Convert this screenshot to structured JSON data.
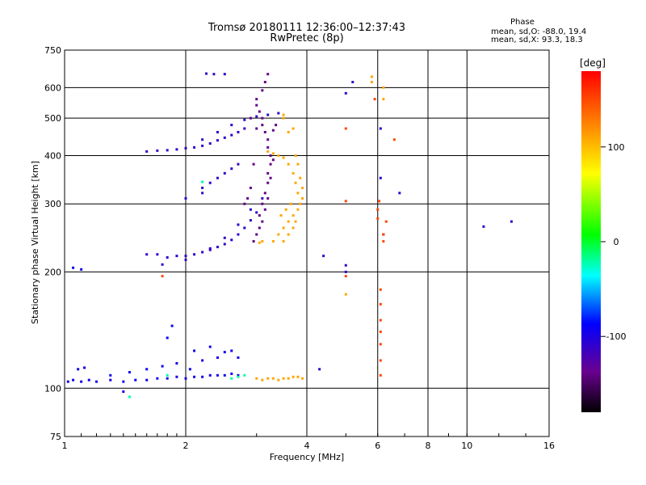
{
  "header": {
    "title_line1": "Tromsø 20180111 12:36:00–12:37:43",
    "title_line2": "RwPretec (8p)",
    "stats_title": "Phase",
    "stats_o": "mean, sd,O: -88.0, 19.4",
    "stats_x": "mean, sd,X:  93.3, 18.3"
  },
  "chart_data": {
    "type": "scatter",
    "title": "Tromsø 20180111 12:36:00–12:37:43",
    "subtitle": "RwPretec (8p)",
    "xlabel": "Frequency [MHz]",
    "ylabel": "Stationary phase Virtual Height [km]",
    "xscale": "log",
    "yscale": "log",
    "xlim": [
      1,
      16
    ],
    "ylim": [
      75,
      750
    ],
    "xticks": [
      1,
      2,
      4,
      6,
      8,
      10,
      16
    ],
    "yticks": [
      75,
      100,
      200,
      300,
      400,
      500,
      600,
      750
    ],
    "grid": true,
    "colorbar": {
      "label": "[deg]",
      "range": [
        -180,
        180
      ],
      "ticks": [
        100,
        0,
        -100
      ]
    },
    "series": [
      {
        "phase": -95,
        "points": [
          [
            1.02,
            104
          ],
          [
            1.05,
            105
          ],
          [
            1.1,
            104
          ],
          [
            1.15,
            105
          ],
          [
            1.2,
            104
          ],
          [
            1.3,
            105
          ],
          [
            1.4,
            104
          ],
          [
            1.5,
            105
          ],
          [
            1.6,
            105
          ],
          [
            1.7,
            106
          ],
          [
            1.8,
            106
          ],
          [
            1.9,
            107
          ],
          [
            2.0,
            106
          ],
          [
            2.1,
            107
          ],
          [
            2.2,
            107
          ],
          [
            2.3,
            108
          ],
          [
            2.4,
            108
          ],
          [
            2.5,
            108
          ],
          [
            2.6,
            109
          ],
          [
            2.7,
            108
          ],
          [
            1.08,
            112
          ],
          [
            1.12,
            113
          ],
          [
            1.3,
            108
          ],
          [
            1.45,
            110
          ],
          [
            1.6,
            112
          ],
          [
            1.75,
            114
          ],
          [
            1.9,
            116
          ],
          [
            2.05,
            112
          ],
          [
            2.2,
            118
          ],
          [
            2.4,
            120
          ],
          [
            2.6,
            125
          ],
          [
            1.85,
            145
          ],
          [
            1.8,
            135
          ],
          [
            2.1,
            125
          ],
          [
            2.3,
            128
          ],
          [
            2.5,
            124
          ],
          [
            2.7,
            120
          ],
          [
            1.4,
            98
          ],
          [
            1.05,
            205
          ],
          [
            1.1,
            203
          ]
        ]
      },
      {
        "phase": -110,
        "points": [
          [
            1.6,
            222
          ],
          [
            1.7,
            222
          ],
          [
            1.8,
            218
          ],
          [
            1.9,
            220
          ],
          [
            2.0,
            220
          ],
          [
            2.1,
            222
          ],
          [
            2.2,
            225
          ],
          [
            2.3,
            228
          ],
          [
            2.4,
            232
          ],
          [
            2.5,
            236
          ],
          [
            2.6,
            242
          ],
          [
            2.7,
            250
          ],
          [
            2.8,
            260
          ],
          [
            2.9,
            272
          ],
          [
            3.0,
            285
          ],
          [
            1.75,
            209
          ],
          [
            2.0,
            215
          ],
          [
            2.3,
            230
          ],
          [
            2.5,
            245
          ],
          [
            2.7,
            265
          ],
          [
            2.9,
            290
          ],
          [
            3.1,
            310
          ],
          [
            1.6,
            410
          ],
          [
            1.7,
            412
          ],
          [
            1.8,
            413
          ],
          [
            1.9,
            415
          ],
          [
            2.0,
            418
          ],
          [
            2.1,
            420
          ],
          [
            2.2,
            424
          ],
          [
            2.3,
            430
          ],
          [
            2.4,
            438
          ],
          [
            2.5,
            445
          ],
          [
            2.6,
            452
          ],
          [
            2.7,
            460
          ],
          [
            2.8,
            470
          ],
          [
            2.2,
            440
          ],
          [
            2.4,
            460
          ],
          [
            2.6,
            480
          ],
          [
            2.8,
            495
          ],
          [
            3.0,
            505
          ],
          [
            3.2,
            510
          ],
          [
            3.4,
            515
          ],
          [
            2.2,
            330
          ],
          [
            2.3,
            340
          ],
          [
            2.4,
            350
          ],
          [
            2.5,
            360
          ],
          [
            2.6,
            370
          ],
          [
            2.7,
            380
          ],
          [
            2.0,
            310
          ],
          [
            2.2,
            320
          ],
          [
            2.35,
            650
          ],
          [
            2.5,
            650
          ],
          [
            2.25,
            652
          ],
          [
            4.4,
            220
          ],
          [
            5.0,
            200
          ],
          [
            5.0,
            208
          ],
          [
            5.0,
            580
          ],
          [
            5.2,
            620
          ],
          [
            6.1,
            470
          ],
          [
            6.1,
            350
          ],
          [
            6.8,
            320
          ],
          [
            11.0,
            262
          ],
          [
            12.9,
            270
          ],
          [
            4.3,
            112
          ],
          [
            6.2,
            250
          ]
        ]
      },
      {
        "phase": -140,
        "points": [
          [
            3.1,
            300
          ],
          [
            3.15,
            320
          ],
          [
            3.2,
            340
          ],
          [
            3.2,
            360
          ],
          [
            3.25,
            380
          ],
          [
            3.25,
            400
          ],
          [
            3.2,
            420
          ],
          [
            3.2,
            440
          ],
          [
            3.15,
            460
          ],
          [
            3.1,
            480
          ],
          [
            3.1,
            500
          ],
          [
            3.05,
            520
          ],
          [
            3.0,
            540
          ],
          [
            3.0,
            560
          ],
          [
            3.1,
            590
          ],
          [
            3.15,
            620
          ],
          [
            3.2,
            650
          ],
          [
            3.1,
            270
          ],
          [
            3.05,
            260
          ],
          [
            3.0,
            250
          ],
          [
            2.95,
            240
          ],
          [
            3.05,
            280
          ],
          [
            3.2,
            310
          ],
          [
            3.15,
            290
          ],
          [
            3.25,
            350
          ],
          [
            3.3,
            390
          ],
          [
            2.95,
            380
          ],
          [
            2.9,
            330
          ],
          [
            2.85,
            310
          ],
          [
            2.8,
            300
          ],
          [
            3.0,
            470
          ],
          [
            2.9,
            500
          ],
          [
            3.3,
            465
          ],
          [
            3.35,
            480
          ]
        ]
      },
      {
        "phase": -20,
        "points": [
          [
            2.6,
            106
          ],
          [
            2.7,
            107
          ],
          [
            2.8,
            108
          ],
          [
            1.8,
            108
          ],
          [
            2.2,
            342
          ],
          [
            1.45,
            95
          ]
        ]
      },
      {
        "phase": 110,
        "points": [
          [
            3.0,
            106
          ],
          [
            3.1,
            105
          ],
          [
            3.2,
            106
          ],
          [
            3.3,
            106
          ],
          [
            3.4,
            105
          ],
          [
            3.5,
            106
          ],
          [
            3.6,
            106
          ],
          [
            3.7,
            107
          ],
          [
            3.8,
            107
          ],
          [
            3.9,
            106
          ],
          [
            3.3,
            240
          ],
          [
            3.4,
            250
          ],
          [
            3.5,
            260
          ],
          [
            3.6,
            270
          ],
          [
            3.7,
            280
          ],
          [
            3.8,
            290
          ],
          [
            3.85,
            300
          ],
          [
            3.8,
            320
          ],
          [
            3.75,
            340
          ],
          [
            3.7,
            360
          ],
          [
            3.6,
            380
          ],
          [
            3.5,
            395
          ],
          [
            3.4,
            400
          ],
          [
            3.3,
            405
          ],
          [
            3.2,
            410
          ],
          [
            3.5,
            240
          ],
          [
            3.6,
            250
          ],
          [
            3.7,
            260
          ],
          [
            3.75,
            270
          ],
          [
            3.9,
            310
          ],
          [
            3.9,
            330
          ],
          [
            3.85,
            350
          ],
          [
            3.8,
            380
          ],
          [
            3.75,
            400
          ],
          [
            3.65,
            300
          ],
          [
            3.55,
            290
          ],
          [
            3.45,
            280
          ],
          [
            3.1,
            240
          ],
          [
            3.05,
            238
          ],
          [
            3.6,
            460
          ],
          [
            3.7,
            470
          ],
          [
            3.5,
            500
          ],
          [
            3.5,
            510
          ],
          [
            6.2,
            560
          ],
          [
            6.2,
            600
          ],
          [
            5.8,
            620
          ],
          [
            5.8,
            640
          ],
          [
            5.0,
            175
          ]
        ]
      },
      {
        "phase": 150,
        "points": [
          [
            5.0,
            470
          ],
          [
            5.0,
            305
          ],
          [
            5.9,
            560
          ],
          [
            6.0,
            290
          ],
          [
            6.0,
            275
          ],
          [
            6.2,
            250
          ],
          [
            6.2,
            240
          ],
          [
            6.1,
            180
          ],
          [
            6.1,
            165
          ],
          [
            6.1,
            150
          ],
          [
            6.1,
            140
          ],
          [
            6.1,
            130
          ],
          [
            6.1,
            118
          ],
          [
            6.1,
            108
          ],
          [
            6.6,
            440
          ],
          [
            5.0,
            195
          ],
          [
            6.3,
            270
          ],
          [
            1.75,
            195
          ],
          [
            6.05,
            305
          ]
        ]
      }
    ]
  }
}
